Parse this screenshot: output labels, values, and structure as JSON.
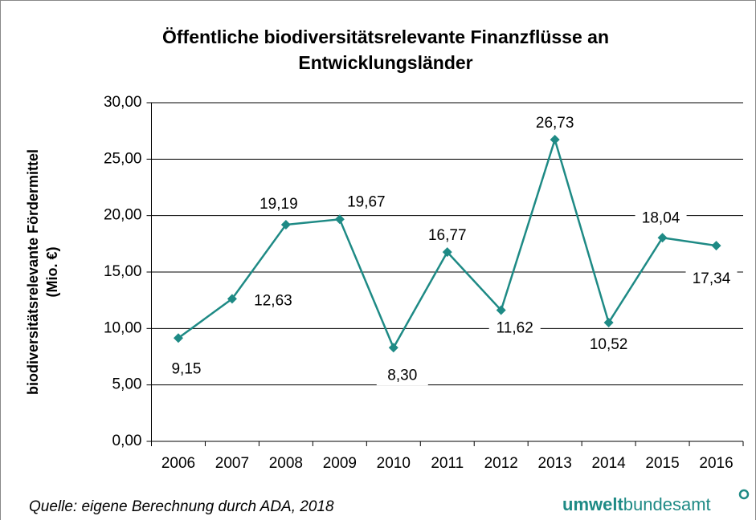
{
  "chart_data": {
    "type": "line",
    "title": [
      "Öffentliche biodiversitätsrelevante Finanzflüsse an",
      "Entwicklungsländer"
    ],
    "y_label": [
      "biodiversitätsrelevante Fördermittel",
      "(Mio. €)"
    ],
    "categories": [
      "2006",
      "2007",
      "2008",
      "2009",
      "2010",
      "2011",
      "2012",
      "2013",
      "2014",
      "2015",
      "2016"
    ],
    "series": [
      {
        "name": "Fördermittel",
        "color": "#1e8a85",
        "values": [
          9.15,
          12.63,
          19.19,
          19.67,
          8.3,
          16.77,
          11.62,
          26.73,
          10.52,
          18.04,
          17.34
        ],
        "value_labels": [
          "9,15",
          "12,63",
          "19,19",
          "19,67",
          "8,30",
          "16,77",
          "11,62",
          "26,73",
          "10,52",
          "18,04",
          "17,34"
        ]
      }
    ],
    "ylim": [
      0,
      30
    ],
    "yticks": [
      {
        "value": 0,
        "label": "0,00"
      },
      {
        "value": 5,
        "label": "5,00"
      },
      {
        "value": 10,
        "label": "10,00"
      },
      {
        "value": 15,
        "label": "15,00"
      },
      {
        "value": 20,
        "label": "20,00"
      },
      {
        "value": 25,
        "label": "25,00"
      },
      {
        "value": 30,
        "label": "30,00"
      }
    ],
    "grid": true,
    "source": "Quelle: eigene Berechnung durch ADA, 2018",
    "logo": [
      "umwelt",
      "bundesamt"
    ]
  }
}
